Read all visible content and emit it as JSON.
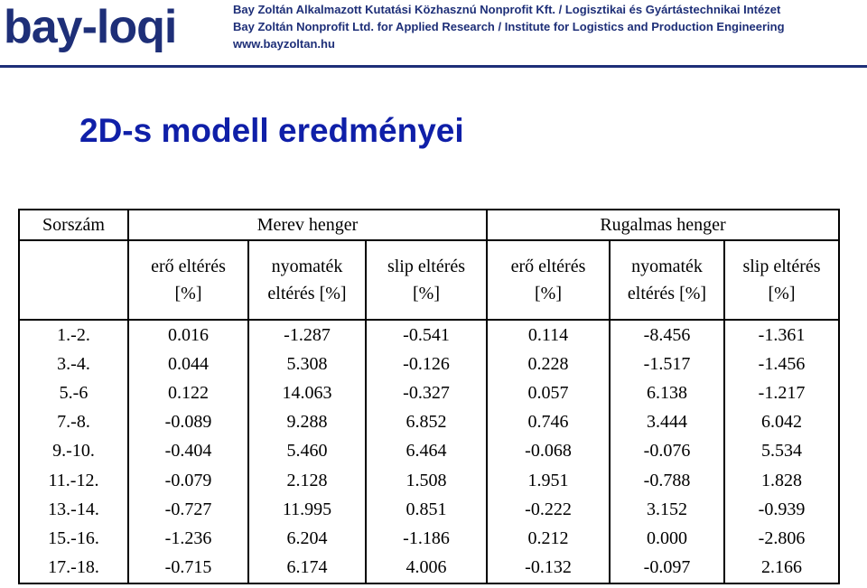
{
  "header": {
    "logo": "bay-loqi",
    "lines": [
      "Bay Zoltán Alkalmazott Kutatási Közhasznú Nonprofit Kft. / Logisztikai és Gyártástechnikai Intézet",
      "Bay Zoltán Nonprofit Ltd. for Applied Research / Institute for Logistics and Production Engineering",
      "www.bayzoltan.hu"
    ],
    "brand_color": "#1e2f78"
  },
  "title": "2D-s modell eredményei",
  "title_color": "#0f1fa8",
  "table": {
    "col_sorszam": "Sorszám",
    "group_merev": "Merev henger",
    "group_rugalmas": "Rugalmas henger",
    "sub_headers": [
      [
        "erő eltérés",
        "[%]"
      ],
      [
        "nyomaték",
        "eltérés [%]"
      ],
      [
        "slip eltérés",
        "[%]"
      ],
      [
        "erő eltérés",
        "[%]"
      ],
      [
        "nyomaték",
        "eltérés [%]"
      ],
      [
        "slip eltérés",
        "[%]"
      ]
    ],
    "rows": [
      [
        "1.-2.",
        "0.016",
        "-1.287",
        "-0.541",
        "0.114",
        "-8.456",
        "-1.361"
      ],
      [
        "3.-4.",
        "0.044",
        "5.308",
        "-0.126",
        "0.228",
        "-1.517",
        "-1.456"
      ],
      [
        "5.-6",
        "0.122",
        "14.063",
        "-0.327",
        "0.057",
        "6.138",
        "-1.217"
      ],
      [
        "7.-8.",
        "-0.089",
        "9.288",
        "6.852",
        "0.746",
        "3.444",
        "6.042"
      ],
      [
        "9.-10.",
        "-0.404",
        "5.460",
        "6.464",
        "-0.068",
        "-0.076",
        "5.534"
      ],
      [
        "11.-12.",
        "-0.079",
        "2.128",
        "1.508",
        "1.951",
        "-0.788",
        "1.828"
      ],
      [
        "13.-14.",
        "-0.727",
        "11.995",
        "0.851",
        "-0.222",
        "3.152",
        "-0.939"
      ],
      [
        "15.-16.",
        "-1.236",
        "6.204",
        "-1.186",
        "0.212",
        "0.000",
        "-2.806"
      ],
      [
        "17.-18.",
        "-0.715",
        "6.174",
        "4.006",
        "-0.132",
        "-0.097",
        "2.166"
      ]
    ]
  }
}
